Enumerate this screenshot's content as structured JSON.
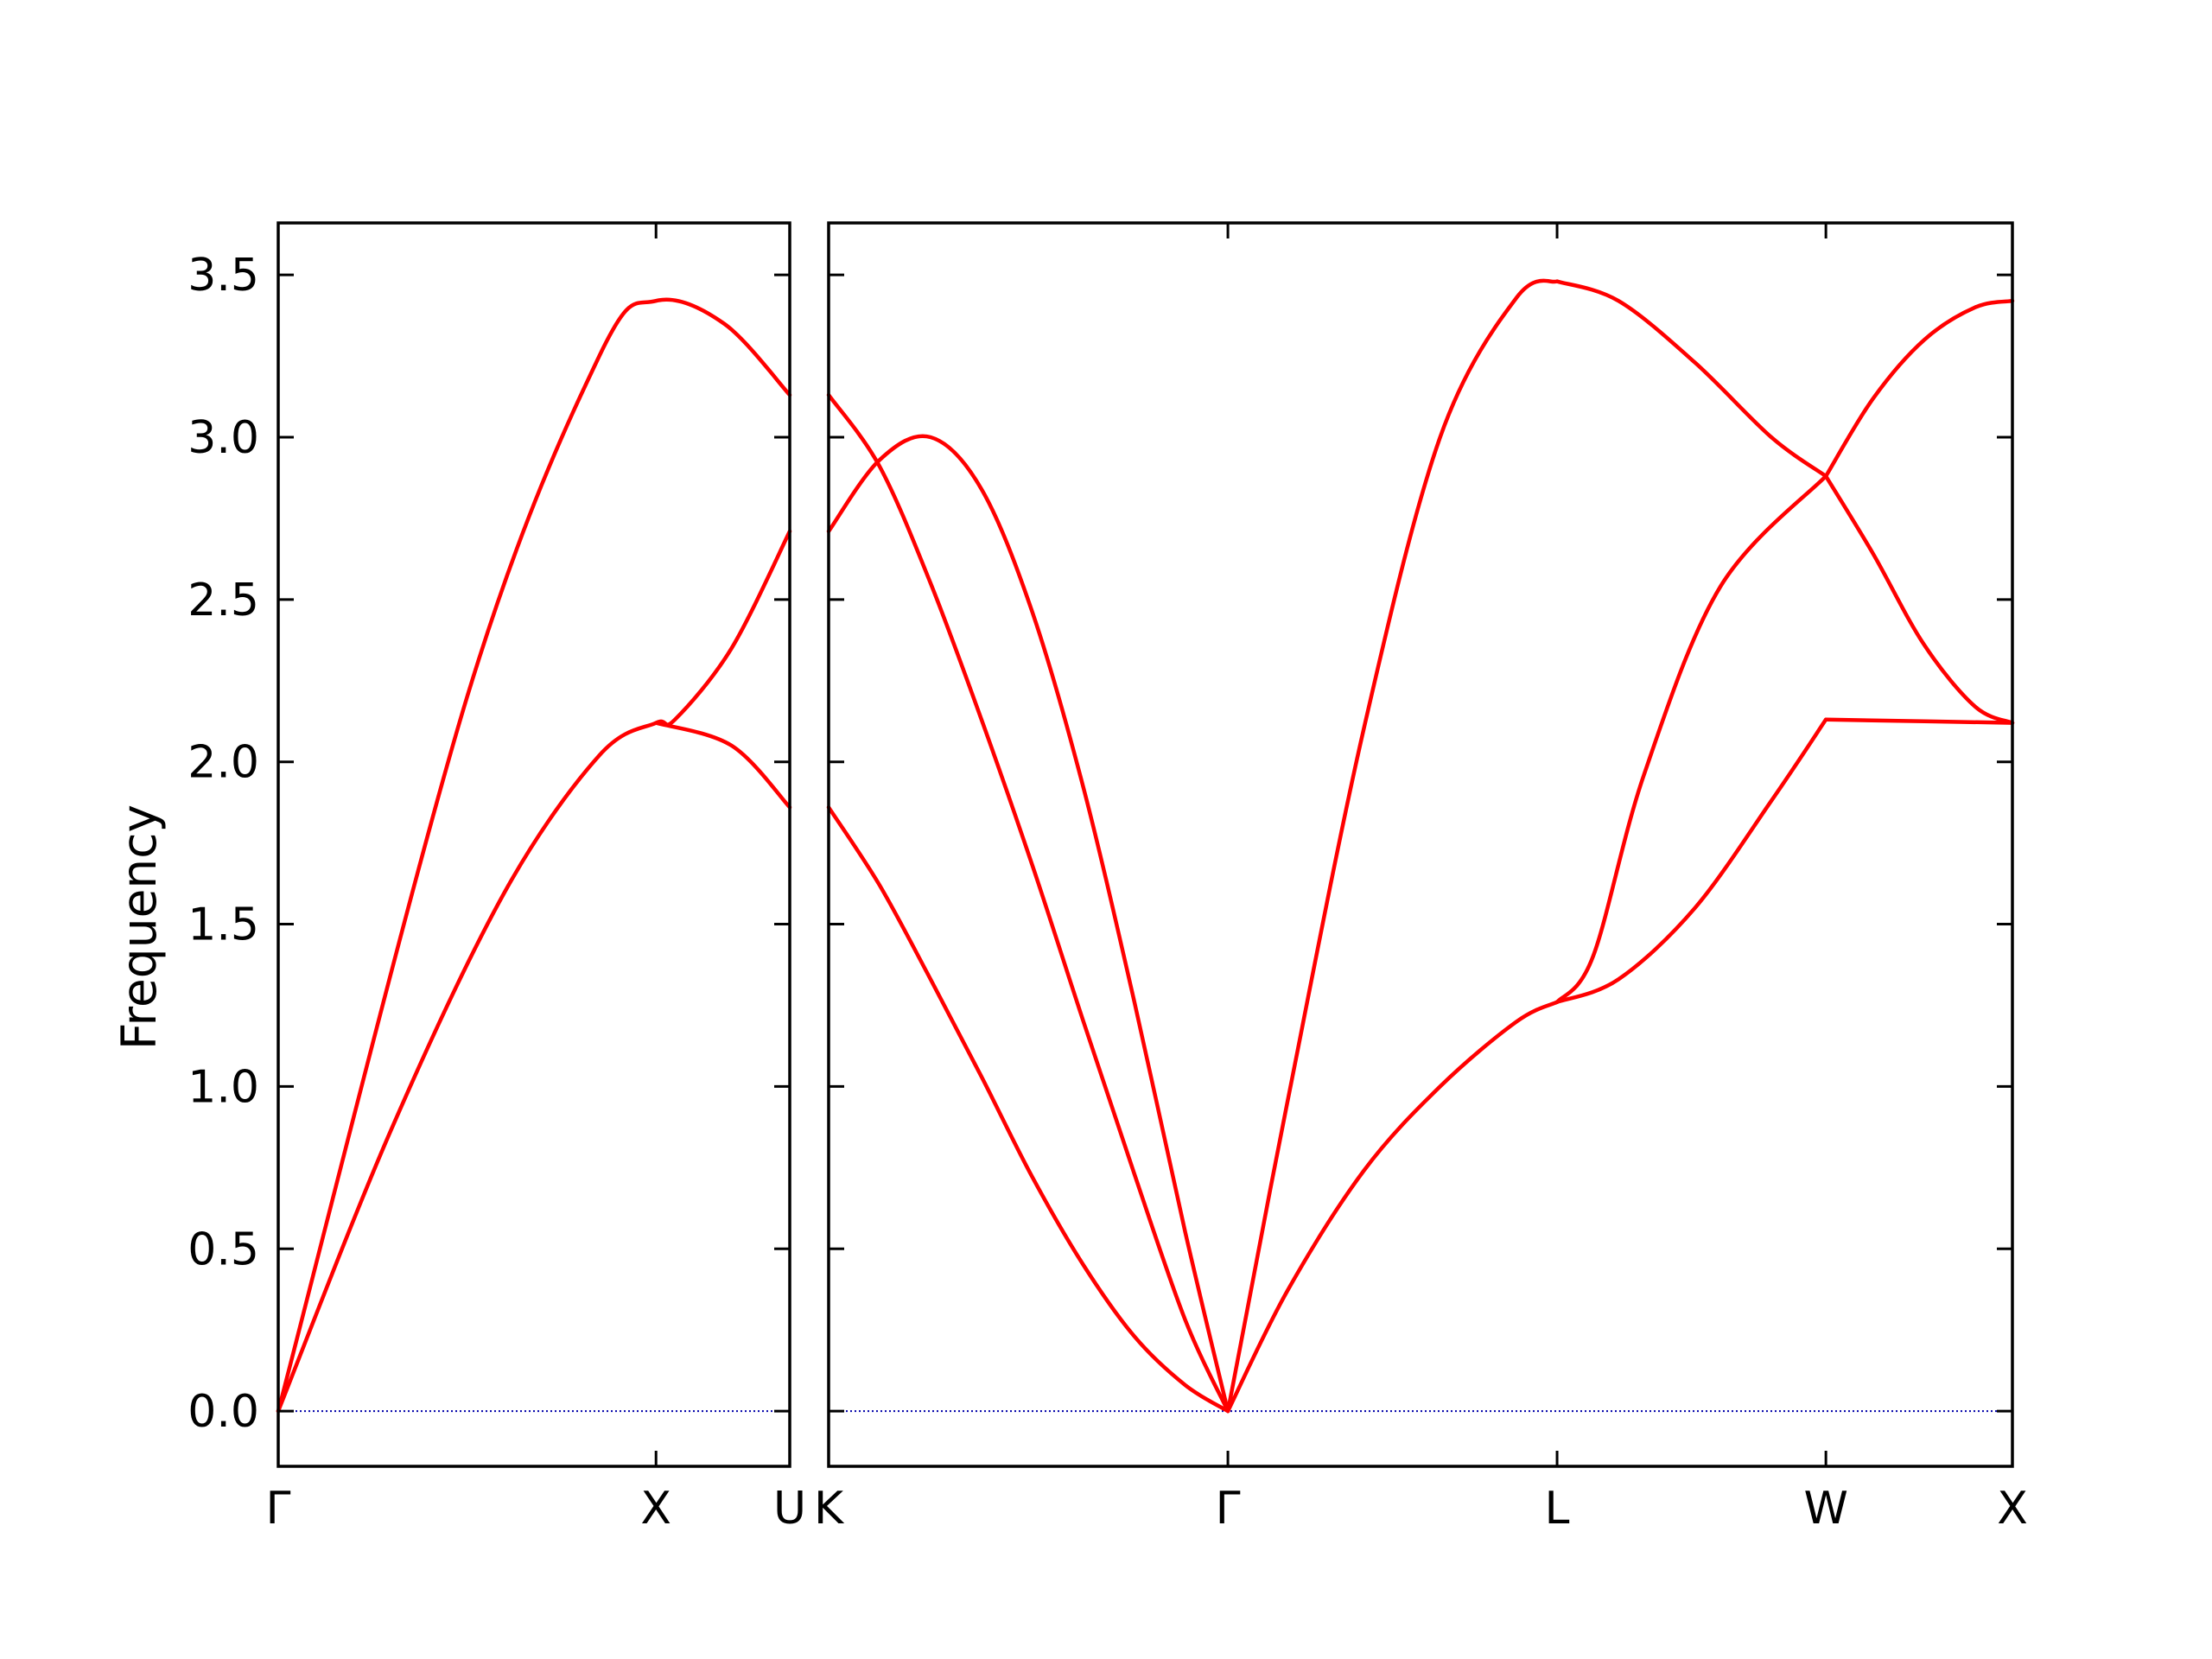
{
  "chart_data": {
    "type": "line",
    "title": "",
    "ylabel": "Frequency",
    "ylim": [
      -0.17,
      3.66
    ],
    "yticks": [
      0.0,
      0.5,
      1.0,
      1.5,
      2.0,
      2.5,
      3.0,
      3.5
    ],
    "ytick_labels": [
      "0.0",
      "0.5",
      "1.0",
      "1.5",
      "2.0",
      "2.5",
      "3.0",
      "3.5"
    ],
    "grid": false,
    "legend": "none",
    "line_color": "#ff0000",
    "zero_line_color": "#0000aa",
    "panels": [
      {
        "name": "left",
        "x_labels": [
          "Γ",
          "X",
          "U"
        ],
        "x_range": [
          0,
          1.354
        ],
        "label_positions": [
          0,
          1,
          1.354
        ],
        "branches": [
          {
            "name": "upper",
            "x": [
              0,
              0.5,
              0.85,
              1.0,
              1.18,
              1.354
            ],
            "y": [
              0.0,
              2.2,
              3.25,
              3.42,
              3.35,
              3.13
            ]
          },
          {
            "name": "middle",
            "x": [
              0,
              0.3,
              0.6,
              0.85,
              1.0,
              1.05,
              1.2,
              1.354
            ],
            "y": [
              0.0,
              0.87,
              1.6,
              2.02,
              2.12,
              2.13,
              2.35,
              2.71
            ]
          },
          {
            "name": "lower",
            "x": [
              1.0,
              1.2,
              1.354
            ],
            "y": [
              2.12,
              2.05,
              1.86
            ]
          }
        ]
      },
      {
        "name": "right",
        "x_labels": [
          "K",
          "Γ",
          "L",
          "W",
          "X"
        ],
        "x_range": [
          0,
          4.646
        ],
        "label_positions": [
          0,
          1.567,
          2.859,
          3.914,
          4.646
        ],
        "branches": [
          {
            "name": "acoustic-1",
            "x": [
              0,
              0.2,
              0.4,
              0.6,
              0.8,
              1.0,
              1.2,
              1.4,
              1.567
            ],
            "y": [
              1.86,
              1.62,
              1.33,
              1.03,
              0.72,
              0.45,
              0.23,
              0.08,
              0.0
            ]
          },
          {
            "name": "acoustic-2",
            "x": [
              0,
              0.2,
              0.4,
              0.6,
              0.8,
              1.0,
              1.2,
              1.4,
              1.567
            ],
            "y": [
              3.13,
              2.91,
              2.55,
              2.13,
              1.68,
              1.2,
              0.73,
              0.28,
              0.0
            ]
          },
          {
            "name": "acoustic-3",
            "x": [
              0,
              0.2,
              0.4,
              0.6,
              0.8,
              1.0,
              1.2,
              1.4,
              1.567
            ],
            "y": [
              2.71,
              2.93,
              3.0,
              2.84,
              2.46,
              1.92,
              1.26,
              0.55,
              0.0
            ]
          },
          {
            "name": "low-to-L",
            "x": [
              1.567,
              1.8,
              2.1,
              2.4,
              2.7,
              2.859
            ],
            "y": [
              0.0,
              0.37,
              0.74,
              1.0,
              1.2,
              1.26
            ]
          },
          {
            "name": "high-to-L",
            "x": [
              1.567,
              1.8,
              2.1,
              2.4,
              2.7,
              2.859
            ],
            "y": [
              0.0,
              0.95,
              2.1,
              3.0,
              3.43,
              3.48
            ]
          },
          {
            "name": "L-to-W-top",
            "x": [
              2.859,
              3.1,
              3.4,
              3.7,
              3.914
            ],
            "y": [
              3.48,
              3.42,
              3.23,
              3.0,
              2.88
            ]
          },
          {
            "name": "L-to-W-mid",
            "x": [
              2.859,
              3.0,
              3.2,
              3.5,
              3.914
            ],
            "y": [
              1.26,
              1.4,
              1.96,
              2.54,
              2.88
            ]
          },
          {
            "name": "L-to-W-low",
            "x": [
              2.859,
              3.1,
              3.4,
              3.7,
              3.914
            ],
            "y": [
              1.26,
              1.33,
              1.55,
              1.88,
              2.13
            ]
          },
          {
            "name": "W-to-X-top",
            "x": [
              3.914,
              4.1,
              4.3,
              4.5,
              4.646
            ],
            "y": [
              2.88,
              3.12,
              3.3,
              3.4,
              3.42
            ]
          },
          {
            "name": "W-to-X-mid",
            "x": [
              3.914,
              4.1,
              4.3,
              4.5,
              4.646
            ],
            "y": [
              2.88,
              2.64,
              2.36,
              2.17,
              2.12
            ]
          },
          {
            "name": "W-to-X-low",
            "x": [
              3.914,
              4.3,
              4.646
            ],
            "y": [
              2.13,
              2.125,
              2.12
            ]
          }
        ]
      }
    ]
  }
}
